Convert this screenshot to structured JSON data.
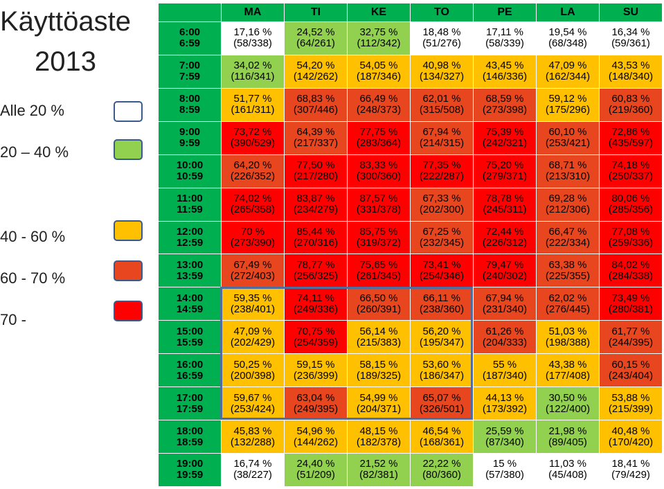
{
  "title": {
    "line1": "Käyttöaste",
    "line2": "2013"
  },
  "legend": [
    {
      "label": "Alle 20 %",
      "color": "#ffffff"
    },
    {
      "label": "20 – 40 %",
      "color": "#92d050"
    },
    {
      "label": "40 -  60 %",
      "color": "#ffc000"
    },
    {
      "label": "60 -  70 %",
      "color": "#e8461f"
    },
    {
      "label": "70 -",
      "color": "#ff0000"
    }
  ],
  "chart_data": {
    "type": "heatmap",
    "title": "Käyttöaste 2013",
    "days": [
      "MA",
      "TI",
      "KE",
      "TO",
      "PE",
      "LA",
      "SU"
    ],
    "time_slots": [
      {
        "start": "6:00",
        "end": "6:59"
      },
      {
        "start": "7:00",
        "end": "7:59"
      },
      {
        "start": "8:00",
        "end": "8:59"
      },
      {
        "start": "9:00",
        "end": "9:59"
      },
      {
        "start": "10:00",
        "end": "10:59"
      },
      {
        "start": "11:00",
        "end": "11:59"
      },
      {
        "start": "12:00",
        "end": "12:59"
      },
      {
        "start": "13:00",
        "end": "13:59"
      },
      {
        "start": "14:00",
        "end": "14:59"
      },
      {
        "start": "15:00",
        "end": "15:59"
      },
      {
        "start": "16:00",
        "end": "16:59"
      },
      {
        "start": "17:00",
        "end": "17:59"
      },
      {
        "start": "18:00",
        "end": "18:59"
      },
      {
        "start": "19:00",
        "end": "19:59"
      }
    ],
    "cells": [
      [
        [
          "17,16 %",
          "(58/338)"
        ],
        [
          "24,52 %",
          "(64/261)"
        ],
        [
          "32,75 %",
          "(112/342)"
        ],
        [
          "18,48 %",
          "(51/276)"
        ],
        [
          "17,11 %",
          "(58/339)"
        ],
        [
          "19,54 %",
          "(68/348)"
        ],
        [
          "16,34 %",
          "(59/361)"
        ]
      ],
      [
        [
          "34,02 %",
          "(116/341)"
        ],
        [
          "54,20 %",
          "(142/262)"
        ],
        [
          "54,05 %",
          "(187/346)"
        ],
        [
          "40,98 %",
          "(134/327)"
        ],
        [
          "43,45 %",
          "(146/336)"
        ],
        [
          "47,09 %",
          "(162/344)"
        ],
        [
          "43,53 %",
          "(148/340)"
        ]
      ],
      [
        [
          "51,77 %",
          "(161/311)"
        ],
        [
          "68,83 %",
          "(307/446)"
        ],
        [
          "66,49 %",
          "(248/373)"
        ],
        [
          "62,01 %",
          "(315/508)"
        ],
        [
          "68,59 %",
          "(273/398)"
        ],
        [
          "59,12 %",
          "(175/296)"
        ],
        [
          "60,83 %",
          "(219/360)"
        ]
      ],
      [
        [
          "73,72 %",
          "(390/529)"
        ],
        [
          "64,39 %",
          "(217/337)"
        ],
        [
          "77,75 %",
          "(283/364)"
        ],
        [
          "67,94 %",
          "(214/315)"
        ],
        [
          "75,39 %",
          "(242/321)"
        ],
        [
          "60,10 %",
          "(253/421)"
        ],
        [
          "72,86 %",
          "(435/597)"
        ]
      ],
      [
        [
          "64,20 %",
          "(226/352)"
        ],
        [
          "77,50 %",
          "(217/280)"
        ],
        [
          "83,33 %",
          "(300/360)"
        ],
        [
          "77,35 %",
          "(222/287)"
        ],
        [
          "75,20 %",
          "(279/371)"
        ],
        [
          "68,71 %",
          "(213/310)"
        ],
        [
          "74,18 %",
          "(250/337)"
        ]
      ],
      [
        [
          "74,02 %",
          "(265/358)"
        ],
        [
          "83,87 %",
          "(234/279)"
        ],
        [
          "87,57 %",
          "(331/378)"
        ],
        [
          "67,33 %",
          "(202/300)"
        ],
        [
          "78,78 %",
          "(245/311)"
        ],
        [
          "69,28 %",
          "(212/306)"
        ],
        [
          "80,06 %",
          "(285/356)"
        ]
      ],
      [
        [
          "70 %",
          "(273/390)"
        ],
        [
          "85,44 %",
          "(270/316)"
        ],
        [
          "85,75 %",
          "(319/372)"
        ],
        [
          "67,25 %",
          "(232/345)"
        ],
        [
          "72,44 %",
          "(226/312)"
        ],
        [
          "66,47 %",
          "(222/334)"
        ],
        [
          "77,08 %",
          "(259/336)"
        ]
      ],
      [
        [
          "67,49 %",
          "(272/403)"
        ],
        [
          "78,77 %",
          "(256/325)"
        ],
        [
          "75,65 %",
          "(261/345)"
        ],
        [
          "73,41 %",
          "(254/346)"
        ],
        [
          "79,47 %",
          "(240/302)"
        ],
        [
          "63,38 %",
          "(225/355)"
        ],
        [
          "84,02 %",
          "(284/338)"
        ]
      ],
      [
        [
          "59,35 %",
          "(238/401)"
        ],
        [
          "74,11 %",
          "(249/336)"
        ],
        [
          "66,50 %",
          "(260/391)"
        ],
        [
          "66,11 %",
          "(238/360)"
        ],
        [
          "67,94 %",
          "(231/340)"
        ],
        [
          "62,02 %",
          "(276/445)"
        ],
        [
          "73,49 %",
          "(280/381)"
        ]
      ],
      [
        [
          "47,09 %",
          "(202/429)"
        ],
        [
          "70,75 %",
          "(254/359)"
        ],
        [
          "56,14 %",
          "(215/383)"
        ],
        [
          "56,20 %",
          "(195/347)"
        ],
        [
          "61,26 %",
          "(204/333)"
        ],
        [
          "51,03 %",
          "(198/388)"
        ],
        [
          "61,77 %",
          "(244/395)"
        ]
      ],
      [
        [
          "50,25 %",
          "(200/398)"
        ],
        [
          "59,15 %",
          "(236/399)"
        ],
        [
          "58,15 %",
          "(189/325)"
        ],
        [
          "53,60 %",
          "(186/347)"
        ],
        [
          "55 %",
          "(187/340)"
        ],
        [
          "43,38 %",
          "(177/408)"
        ],
        [
          "60,15 %",
          "(243/404)"
        ]
      ],
      [
        [
          "59,67 %",
          "(253/424)"
        ],
        [
          "63,04 %",
          "(249/395)"
        ],
        [
          "54,99 %",
          "(204/371)"
        ],
        [
          "65,07 %",
          "(326/501)"
        ],
        [
          "44,13 %",
          "(173/392)"
        ],
        [
          "30,50 %",
          "(122/400)"
        ],
        [
          "53,88 %",
          "(215/399)"
        ]
      ],
      [
        [
          "45,83 %",
          "(132/288)"
        ],
        [
          "54,96 %",
          "(144/262)"
        ],
        [
          "48,15 %",
          "(182/378)"
        ],
        [
          "46,54 %",
          "(168/361)"
        ],
        [
          "25,59 %",
          "(87/340)"
        ],
        [
          "21,98 %",
          "(89/405)"
        ],
        [
          "40,48 %",
          "(170/420)"
        ]
      ],
      [
        [
          "16,74 %",
          "(38/227)"
        ],
        [
          "24,40 %",
          "(51/209)"
        ],
        [
          "21,52 %",
          "(82/381)"
        ],
        [
          "22,22 %",
          "(80/360)"
        ],
        [
          "15 %",
          "(57/380)"
        ],
        [
          "11,03 %",
          "(45/408)"
        ],
        [
          "18,41 %",
          "(79/429)"
        ]
      ]
    ],
    "colors": [
      [
        "#ffffff",
        "#92d050",
        "#92d050",
        "#ffffff",
        "#ffffff",
        "#ffffff",
        "#ffffff"
      ],
      [
        "#92d050",
        "#ffc000",
        "#ffc000",
        "#ffc000",
        "#ffc000",
        "#ffc000",
        "#ffc000"
      ],
      [
        "#ffc000",
        "#e8461f",
        "#e8461f",
        "#e8461f",
        "#e8461f",
        "#ffc000",
        "#e8461f"
      ],
      [
        "#ff0000",
        "#e8461f",
        "#ff0000",
        "#e8461f",
        "#ff0000",
        "#e8461f",
        "#ff0000"
      ],
      [
        "#e8461f",
        "#ff0000",
        "#ff0000",
        "#ff0000",
        "#ff0000",
        "#e8461f",
        "#ff0000"
      ],
      [
        "#ff0000",
        "#ff0000",
        "#ff0000",
        "#e8461f",
        "#ff0000",
        "#e8461f",
        "#ff0000"
      ],
      [
        "#ff0000",
        "#ff0000",
        "#ff0000",
        "#e8461f",
        "#ff0000",
        "#e8461f",
        "#ff0000"
      ],
      [
        "#e8461f",
        "#ff0000",
        "#ff0000",
        "#ff0000",
        "#ff0000",
        "#e8461f",
        "#ff0000"
      ],
      [
        "#ffc000",
        "#ff0000",
        "#e8461f",
        "#e8461f",
        "#e8461f",
        "#e8461f",
        "#ff0000"
      ],
      [
        "#ffc000",
        "#ff0000",
        "#ffc000",
        "#ffc000",
        "#e8461f",
        "#ffc000",
        "#e8461f"
      ],
      [
        "#ffc000",
        "#ffc000",
        "#ffc000",
        "#ffc000",
        "#ffc000",
        "#ffc000",
        "#e8461f"
      ],
      [
        "#ffc000",
        "#e8461f",
        "#ffc000",
        "#e8461f",
        "#ffc000",
        "#92d050",
        "#ffc000"
      ],
      [
        "#ffc000",
        "#ffc000",
        "#ffc000",
        "#ffc000",
        "#92d050",
        "#92d050",
        "#ffc000"
      ],
      [
        "#ffffff",
        "#92d050",
        "#92d050",
        "#92d050",
        "#ffffff",
        "#ffffff",
        "#ffffff"
      ]
    ]
  }
}
